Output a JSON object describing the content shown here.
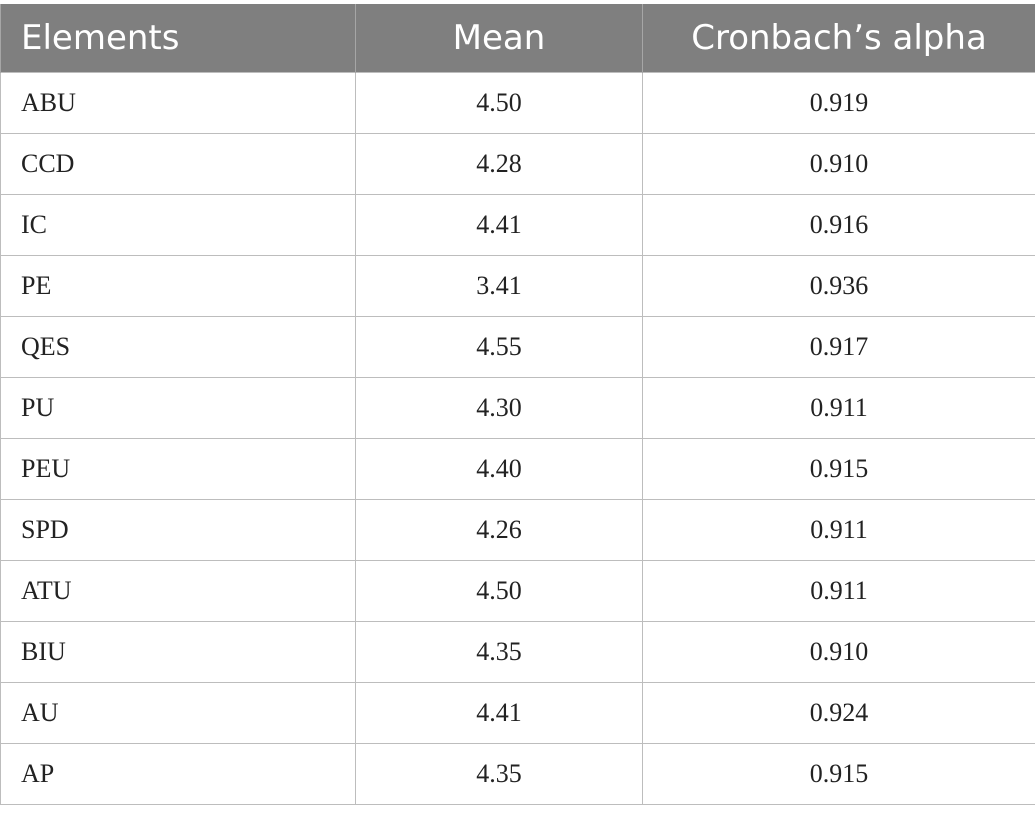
{
  "table": {
    "headers": [
      "Elements",
      "Mean",
      "Cronbach’s alpha"
    ],
    "rows": [
      [
        "ABU",
        "4.50",
        "0.919"
      ],
      [
        "CCD",
        "4.28",
        "0.910"
      ],
      [
        "IC",
        "4.41",
        "0.916"
      ],
      [
        "PE",
        "3.41",
        "0.936"
      ],
      [
        "QES",
        "4.55",
        "0.917"
      ],
      [
        "PU",
        "4.30",
        "0.911"
      ],
      [
        "PEU",
        "4.40",
        "0.915"
      ],
      [
        "SPD",
        "4.26",
        "0.911"
      ],
      [
        "ATU",
        "4.50",
        "0.911"
      ],
      [
        "BIU",
        "4.35",
        "0.910"
      ],
      [
        "AU",
        "4.41",
        "0.924"
      ],
      [
        "AP",
        "4.35",
        "0.915"
      ]
    ]
  },
  "colors": {
    "header_background": "#7f7f7f",
    "header_text": "#ffffff",
    "grid_line": "#bdbdbd"
  }
}
